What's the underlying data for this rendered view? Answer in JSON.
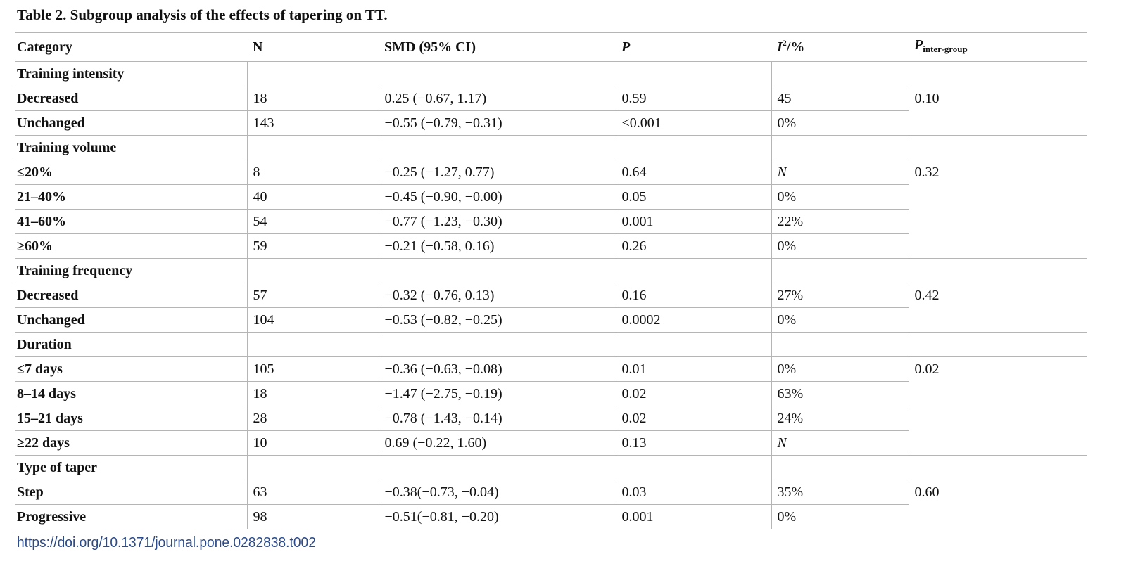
{
  "caption": "Table 2.  Subgroup analysis of the effects of tapering on TT.",
  "headers": {
    "category": "Category",
    "n": "N",
    "smd": "SMD (95% CI)",
    "p": "P",
    "i2_letter": "I",
    "i2_sup": "2",
    "i2_suffix": "/%",
    "pinter_letter": "P",
    "pinter_sub": "inter-group"
  },
  "groups": [
    {
      "title": "Training intensity",
      "p_inter": "0.10",
      "rows": [
        {
          "category": "Decreased",
          "n": "18",
          "smd": "0.25 (−0.67, 1.17)",
          "p": "0.59",
          "i2": "45"
        },
        {
          "category": "Unchanged",
          "n": "143",
          "smd": "−0.55 (−0.79, −0.31)",
          "p": "<0.001",
          "i2": "0%"
        }
      ]
    },
    {
      "title": "Training volume",
      "p_inter": "0.32",
      "rows": [
        {
          "category": "≤20%",
          "n": "8",
          "smd": "−0.25 (−1.27, 0.77)",
          "p": "0.64",
          "i2": "N",
          "i2_italic": true
        },
        {
          "category": "21–40%",
          "n": "40",
          "smd": "−0.45 (−0.90, −0.00)",
          "p": "0.05",
          "i2": "0%"
        },
        {
          "category": "41–60%",
          "n": "54",
          "smd": "−0.77 (−1.23, −0.30)",
          "p": "0.001",
          "i2": "22%"
        },
        {
          "category": "≥60%",
          "n": "59",
          "smd": "−0.21 (−0.58, 0.16)",
          "p": "0.26",
          "i2": "0%"
        }
      ]
    },
    {
      "title": "Training frequency",
      "p_inter": "0.42",
      "rows": [
        {
          "category": "Decreased",
          "n": "57",
          "smd": "−0.32 (−0.76, 0.13)",
          "p": "0.16",
          "i2": "27%"
        },
        {
          "category": "Unchanged",
          "n": "104",
          "smd": "−0.53 (−0.82, −0.25)",
          "p": "0.0002",
          "i2": "0%"
        }
      ]
    },
    {
      "title": "Duration",
      "p_inter": "0.02",
      "rows": [
        {
          "category": "≤7 days",
          "n": "105",
          "smd": "−0.36 (−0.63, −0.08)",
          "p": "0.01",
          "i2": "0%"
        },
        {
          "category": "8–14 days",
          "n": "18",
          "smd": "−1.47 (−2.75, −0.19)",
          "p": "0.02",
          "i2": "63%"
        },
        {
          "category": "15–21 days",
          "n": "28",
          "smd": "−0.78 (−1.43, −0.14)",
          "p": "0.02",
          "i2": "24%"
        },
        {
          "category": "≥22 days",
          "n": "10",
          "smd": "0.69 (−0.22, 1.60)",
          "p": "0.13",
          "i2": "N",
          "i2_italic": true
        }
      ]
    },
    {
      "title": "Type of taper",
      "p_inter": "0.60",
      "rows": [
        {
          "category": "Step",
          "n": "63",
          "smd": "−0.38(−0.73, −0.04)",
          "p": "0.03",
          "i2": "35%"
        },
        {
          "category": "Progressive",
          "n": "98",
          "smd": "−0.51(−0.81, −0.20)",
          "p": "0.001",
          "i2": "0%"
        }
      ]
    }
  ],
  "doi": "https://doi.org/10.1371/journal.pone.0282838.t002"
}
